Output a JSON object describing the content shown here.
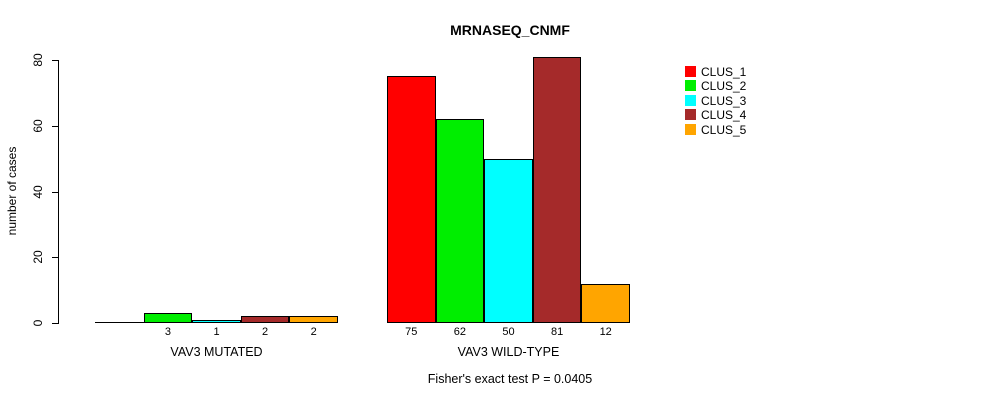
{
  "chart_data": {
    "type": "bar",
    "title": "MRNASEQ_CNMF",
    "ylabel": "number of cases",
    "ylim": [
      0,
      80
    ],
    "yticks": [
      0,
      20,
      40,
      60,
      80
    ],
    "grid": false,
    "legend_position": "right",
    "series": [
      {
        "name": "CLUS_1",
        "color": "#FF0000"
      },
      {
        "name": "CLUS_2",
        "color": "#00EE00"
      },
      {
        "name": "CLUS_3",
        "color": "#00FFFF"
      },
      {
        "name": "CLUS_4",
        "color": "#A52A2A"
      },
      {
        "name": "CLUS_5",
        "color": "#FFA500"
      }
    ],
    "groups": [
      {
        "label": "VAV3 MUTATED",
        "values": [
          0,
          3,
          1,
          2,
          2
        ]
      },
      {
        "label": "VAV3 WILD-TYPE",
        "values": [
          75,
          62,
          50,
          81,
          12
        ]
      }
    ],
    "footnote": "Fisher's exact test P = 0.0405"
  }
}
